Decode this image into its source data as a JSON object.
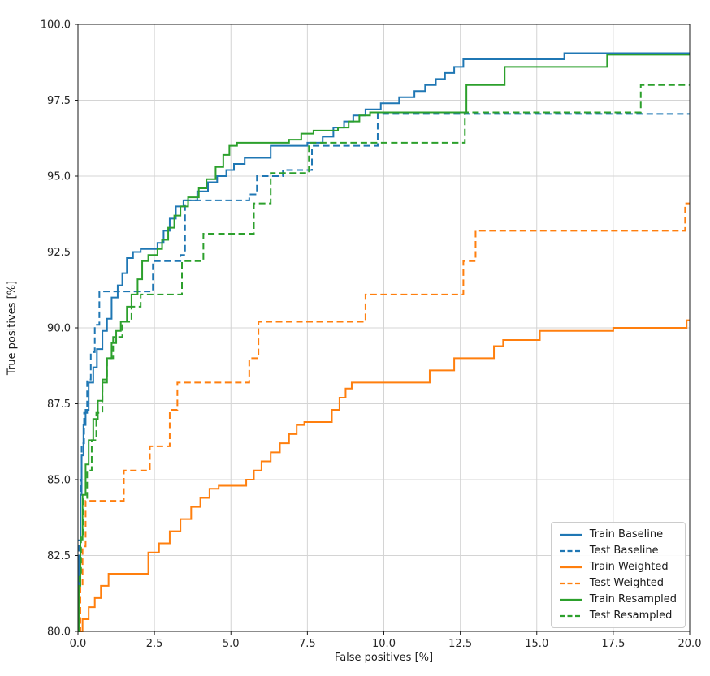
{
  "figure": {
    "background": "#ffffff"
  },
  "chart_data": {
    "type": "line",
    "subtype": "roc-step-curves",
    "title": "",
    "xlabel": "False positives [%]",
    "ylabel": "True positives [%]",
    "xlim": [
      0,
      20
    ],
    "ylim": [
      80,
      100
    ],
    "xticks": [
      0.0,
      2.5,
      5.0,
      7.5,
      10.0,
      12.5,
      15.0,
      17.5,
      20.0
    ],
    "yticks": [
      80.0,
      82.5,
      85.0,
      87.5,
      90.0,
      92.5,
      95.0,
      97.5,
      100.0
    ],
    "xtick_labels": [
      "0.0",
      "2.5",
      "5.0",
      "7.5",
      "10.0",
      "12.5",
      "15.0",
      "17.5",
      "20.0"
    ],
    "ytick_labels": [
      "80.0",
      "82.5",
      "85.0",
      "87.5",
      "90.0",
      "92.5",
      "95.0",
      "97.5",
      "100.0"
    ],
    "grid": true,
    "legend_position": "lower right",
    "step_mode": "post",
    "colors": {
      "blue": "#1f77b4",
      "orange": "#ff7f0e",
      "green": "#2ca02c",
      "grid": "#d4d4d4",
      "spine": "#1a1a1a",
      "tick_text": "#262626"
    },
    "series": [
      {
        "name": "Train Baseline",
        "color": "#1f77b4",
        "dash": "solid",
        "points": [
          [
            0,
            80
          ],
          [
            0.04,
            82.5
          ],
          [
            0.08,
            84.5
          ],
          [
            0.12,
            85.8
          ],
          [
            0.18,
            86.8
          ],
          [
            0.25,
            87.3
          ],
          [
            0.35,
            88.2
          ],
          [
            0.5,
            88.7
          ],
          [
            0.62,
            89.3
          ],
          [
            0.8,
            89.9
          ],
          [
            0.95,
            90.3
          ],
          [
            1.1,
            91.0
          ],
          [
            1.3,
            91.4
          ],
          [
            1.45,
            91.8
          ],
          [
            1.6,
            92.3
          ],
          [
            1.8,
            92.5
          ],
          [
            2.05,
            92.6
          ],
          [
            2.6,
            92.8
          ],
          [
            2.8,
            93.2
          ],
          [
            3.0,
            93.6
          ],
          [
            3.2,
            94.0
          ],
          [
            3.45,
            94.2
          ],
          [
            3.9,
            94.5
          ],
          [
            4.25,
            94.8
          ],
          [
            4.55,
            95.0
          ],
          [
            4.85,
            95.2
          ],
          [
            5.1,
            95.4
          ],
          [
            5.45,
            95.6
          ],
          [
            6.3,
            96.0
          ],
          [
            7.5,
            96.1
          ],
          [
            8.0,
            96.3
          ],
          [
            8.35,
            96.6
          ],
          [
            8.7,
            96.8
          ],
          [
            9.0,
            97.0
          ],
          [
            9.4,
            97.2
          ],
          [
            9.9,
            97.4
          ],
          [
            10.5,
            97.6
          ],
          [
            11.0,
            97.8
          ],
          [
            11.35,
            98.0
          ],
          [
            11.7,
            98.2
          ],
          [
            12.0,
            98.4
          ],
          [
            12.3,
            98.6
          ],
          [
            12.6,
            98.85
          ],
          [
            15.9,
            99.05
          ],
          [
            20,
            99.05
          ]
        ]
      },
      {
        "name": "Test Baseline",
        "color": "#1f77b4",
        "dash": "dashed",
        "points": [
          [
            0,
            80
          ],
          [
            0.04,
            83
          ],
          [
            0.08,
            85
          ],
          [
            0.12,
            86.2
          ],
          [
            0.2,
            87.2
          ],
          [
            0.3,
            88.3
          ],
          [
            0.42,
            89.2
          ],
          [
            0.55,
            90.1
          ],
          [
            0.7,
            91.2
          ],
          [
            2.45,
            92.2
          ],
          [
            3.35,
            92.4
          ],
          [
            3.5,
            94.2
          ],
          [
            5.6,
            94.4
          ],
          [
            5.85,
            95.0
          ],
          [
            6.7,
            95.2
          ],
          [
            7.65,
            96.0
          ],
          [
            9.8,
            97.05
          ],
          [
            20,
            97.05
          ]
        ]
      },
      {
        "name": "Train Weighted",
        "color": "#ff7f0e",
        "dash": "solid",
        "points": [
          [
            0,
            80
          ],
          [
            0.15,
            80.4
          ],
          [
            0.35,
            80.8
          ],
          [
            0.55,
            81.1
          ],
          [
            0.75,
            81.5
          ],
          [
            1.0,
            81.9
          ],
          [
            2.3,
            82.6
          ],
          [
            2.65,
            82.9
          ],
          [
            3.0,
            83.3
          ],
          [
            3.35,
            83.7
          ],
          [
            3.7,
            84.1
          ],
          [
            4.0,
            84.4
          ],
          [
            4.3,
            84.7
          ],
          [
            4.6,
            84.8
          ],
          [
            5.5,
            85.0
          ],
          [
            5.75,
            85.3
          ],
          [
            6.0,
            85.6
          ],
          [
            6.3,
            85.9
          ],
          [
            6.6,
            86.2
          ],
          [
            6.9,
            86.5
          ],
          [
            7.15,
            86.8
          ],
          [
            7.4,
            86.9
          ],
          [
            8.3,
            87.3
          ],
          [
            8.55,
            87.7
          ],
          [
            8.75,
            88.0
          ],
          [
            8.95,
            88.2
          ],
          [
            11.5,
            88.6
          ],
          [
            12.3,
            89.0
          ],
          [
            13.6,
            89.4
          ],
          [
            13.9,
            89.6
          ],
          [
            15.1,
            89.9
          ],
          [
            17.5,
            90.0
          ],
          [
            19.9,
            90.25
          ],
          [
            20,
            90.25
          ]
        ]
      },
      {
        "name": "Test Weighted",
        "color": "#ff7f0e",
        "dash": "dashed",
        "points": [
          [
            0,
            80
          ],
          [
            0.08,
            81.5
          ],
          [
            0.15,
            82.8
          ],
          [
            0.25,
            84.3
          ],
          [
            1.5,
            85.3
          ],
          [
            2.35,
            86.1
          ],
          [
            3.0,
            87.3
          ],
          [
            3.25,
            88.2
          ],
          [
            5.6,
            89.0
          ],
          [
            5.9,
            90.2
          ],
          [
            9.4,
            91.1
          ],
          [
            12.6,
            92.2
          ],
          [
            13.0,
            93.2
          ],
          [
            19.85,
            94.1
          ],
          [
            20,
            94.1
          ]
        ]
      },
      {
        "name": "Train Resampled",
        "color": "#2ca02c",
        "dash": "solid",
        "points": [
          [
            0,
            80
          ],
          [
            0.04,
            81.5
          ],
          [
            0.08,
            83
          ],
          [
            0.15,
            84.5
          ],
          [
            0.25,
            85.5
          ],
          [
            0.35,
            86.3
          ],
          [
            0.5,
            87.0
          ],
          [
            0.65,
            87.6
          ],
          [
            0.8,
            88.2
          ],
          [
            0.95,
            89.0
          ],
          [
            1.1,
            89.5
          ],
          [
            1.25,
            89.9
          ],
          [
            1.4,
            90.2
          ],
          [
            1.6,
            90.7
          ],
          [
            1.75,
            91.1
          ],
          [
            1.95,
            91.6
          ],
          [
            2.1,
            92.2
          ],
          [
            2.3,
            92.4
          ],
          [
            2.6,
            92.6
          ],
          [
            2.75,
            92.9
          ],
          [
            2.95,
            93.3
          ],
          [
            3.15,
            93.7
          ],
          [
            3.35,
            94.0
          ],
          [
            3.6,
            94.3
          ],
          [
            3.95,
            94.6
          ],
          [
            4.2,
            94.9
          ],
          [
            4.5,
            95.3
          ],
          [
            4.75,
            95.7
          ],
          [
            4.95,
            96.0
          ],
          [
            5.2,
            96.1
          ],
          [
            6.9,
            96.2
          ],
          [
            7.3,
            96.4
          ],
          [
            7.7,
            96.5
          ],
          [
            8.5,
            96.6
          ],
          [
            8.85,
            96.8
          ],
          [
            9.2,
            97.0
          ],
          [
            9.55,
            97.1
          ],
          [
            12.7,
            98.0
          ],
          [
            13.95,
            98.6
          ],
          [
            17.3,
            99.0
          ],
          [
            20,
            99.0
          ]
        ]
      },
      {
        "name": "Test Resampled",
        "color": "#2ca02c",
        "dash": "dashed",
        "points": [
          [
            0,
            80
          ],
          [
            0.05,
            81.8
          ],
          [
            0.1,
            83.2
          ],
          [
            0.18,
            84.4
          ],
          [
            0.3,
            85.3
          ],
          [
            0.45,
            86.3
          ],
          [
            0.6,
            87.2
          ],
          [
            0.8,
            88.3
          ],
          [
            0.95,
            89.0
          ],
          [
            1.15,
            89.7
          ],
          [
            1.45,
            90.2
          ],
          [
            1.75,
            90.7
          ],
          [
            2.05,
            91.1
          ],
          [
            3.4,
            92.2
          ],
          [
            4.1,
            93.1
          ],
          [
            5.75,
            94.1
          ],
          [
            6.3,
            95.1
          ],
          [
            7.55,
            96.1
          ],
          [
            12.65,
            97.1
          ],
          [
            18.4,
            98.0
          ],
          [
            20,
            98.0
          ]
        ]
      }
    ]
  }
}
